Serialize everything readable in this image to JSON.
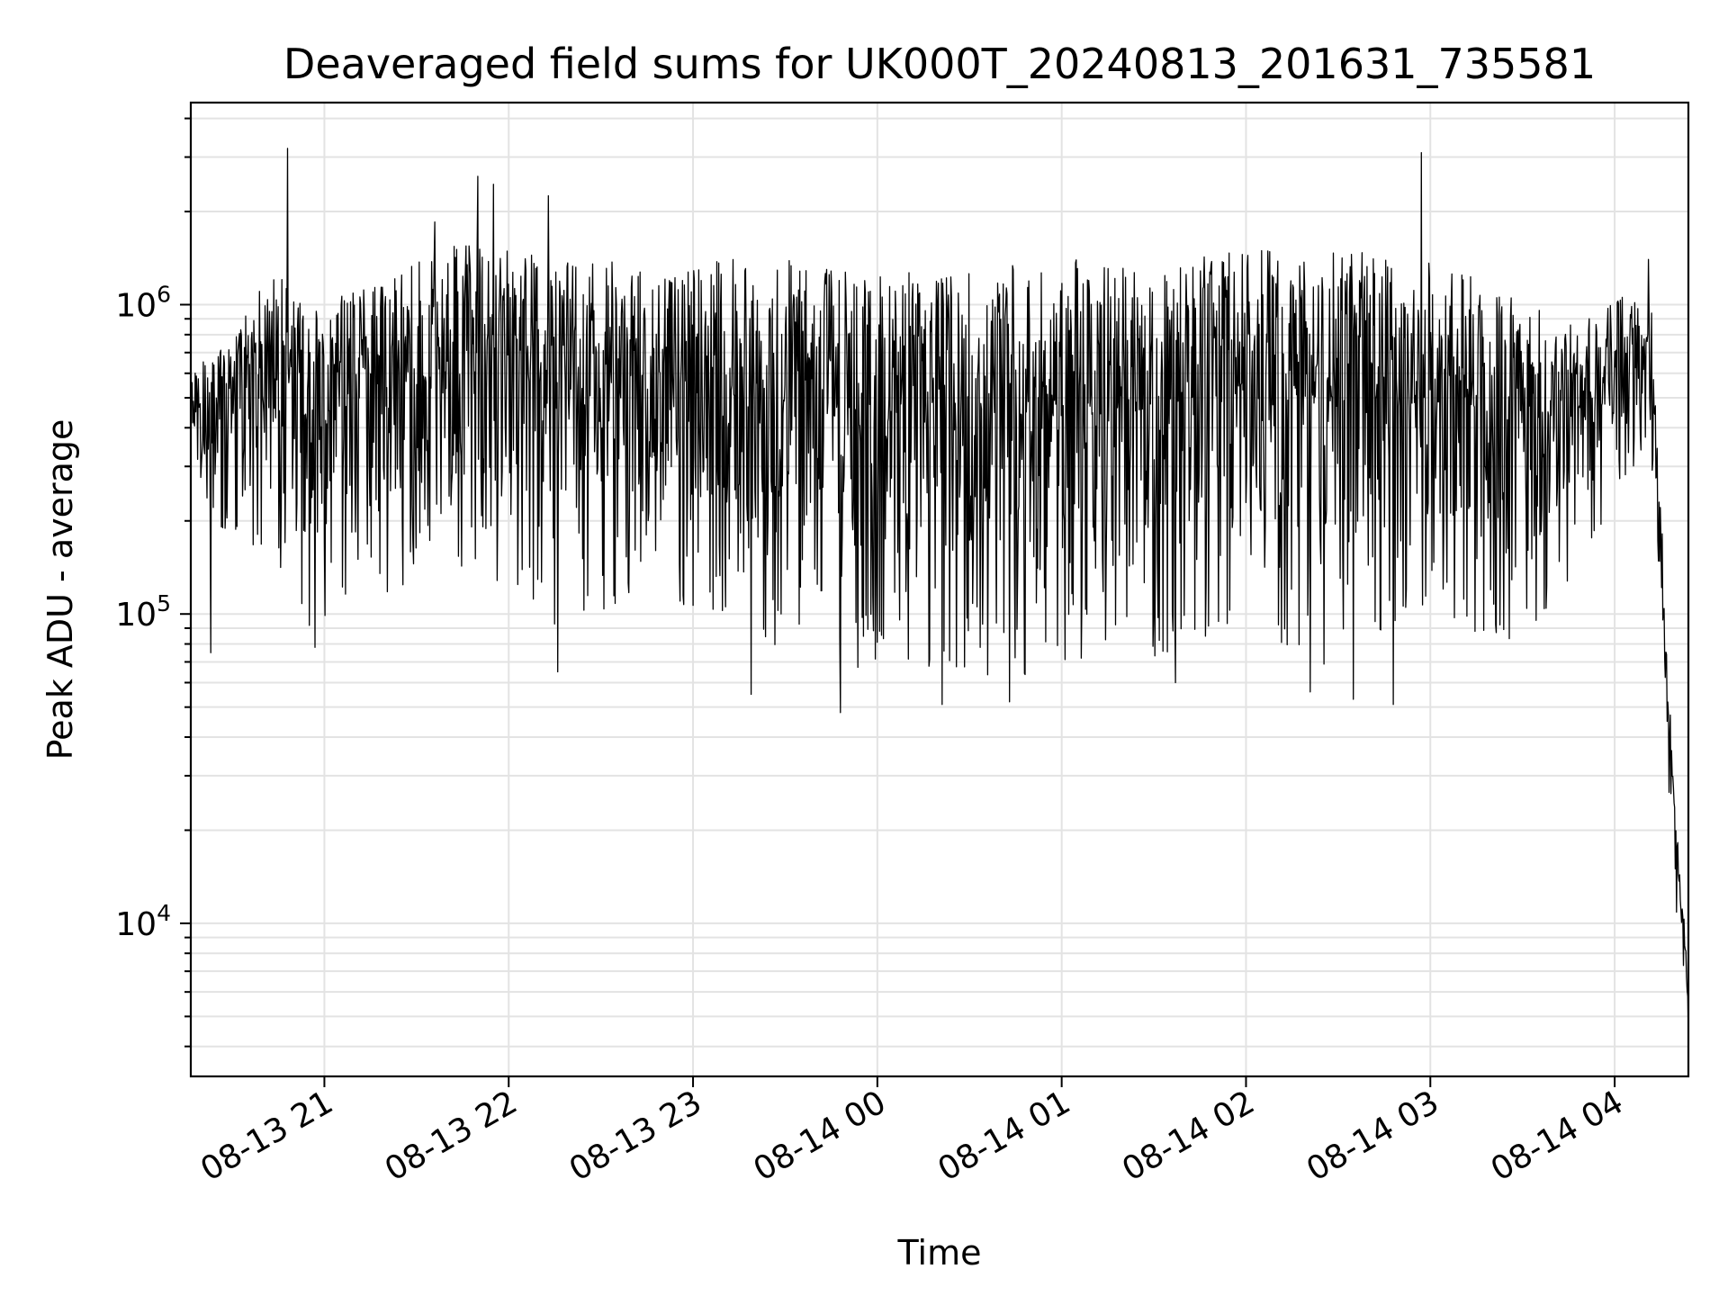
{
  "chart_data": {
    "type": "line",
    "title": "Deaveraged field sums for UK000T_20240813_201631_735581",
    "xlabel": "Time",
    "ylabel": "Peak ADU - average",
    "yscale": "log",
    "grid": true,
    "grid_color": "#e3e3e3",
    "line_color": "#000000",
    "xlim": [
      "2024-08-13T20:16:31",
      "2024-08-14T04:24:00"
    ],
    "ylim": [
      3200,
      4500000
    ],
    "x_ticks": [
      {
        "value": "2024-08-13T21:00:00",
        "label": "08-13 21"
      },
      {
        "value": "2024-08-13T22:00:00",
        "label": "08-13 22"
      },
      {
        "value": "2024-08-13T23:00:00",
        "label": "08-13 23"
      },
      {
        "value": "2024-08-14T00:00:00",
        "label": "08-14 00"
      },
      {
        "value": "2024-08-14T01:00:00",
        "label": "08-14 01"
      },
      {
        "value": "2024-08-14T02:00:00",
        "label": "08-14 02"
      },
      {
        "value": "2024-08-14T03:00:00",
        "label": "08-14 03"
      },
      {
        "value": "2024-08-14T04:00:00",
        "label": "08-14 04"
      }
    ],
    "y_ticks": [
      {
        "value": 10000,
        "base": "10",
        "exp": "4"
      },
      {
        "value": 100000,
        "base": "10",
        "exp": "5"
      },
      {
        "value": 1000000,
        "base": "10",
        "exp": "6"
      }
    ],
    "series": [
      {
        "envelope": [
          {
            "t": "2024-08-13T20:16:31",
            "low": 380000,
            "high": 580000
          },
          {
            "t": "2024-08-13T20:25:00",
            "low": 150000,
            "high": 750000
          },
          {
            "t": "2024-08-13T20:35:00",
            "low": 140000,
            "high": 1000000
          },
          {
            "t": "2024-08-13T20:45:00",
            "low": 130000,
            "high": 1300000
          },
          {
            "t": "2024-08-13T20:55:00",
            "low": 90000,
            "high": 1000000
          },
          {
            "t": "2024-08-13T21:15:00",
            "low": 110000,
            "high": 1200000
          },
          {
            "t": "2024-08-13T21:30:00",
            "low": 120000,
            "high": 1400000
          },
          {
            "t": "2024-08-13T21:45:00",
            "low": 120000,
            "high": 1600000
          },
          {
            "t": "2024-08-13T22:00:00",
            "low": 130000,
            "high": 1500000
          },
          {
            "t": "2024-08-13T22:15:00",
            "low": 90000,
            "high": 1400000
          },
          {
            "t": "2024-08-13T22:45:00",
            "low": 110000,
            "high": 1400000
          },
          {
            "t": "2024-08-13T23:00:00",
            "low": 100000,
            "high": 1500000
          },
          {
            "t": "2024-08-13T23:30:00",
            "low": 75000,
            "high": 1400000
          },
          {
            "t": "2024-08-14T00:00:00",
            "low": 65000,
            "high": 1300000
          },
          {
            "t": "2024-08-14T00:30:00",
            "low": 60000,
            "high": 1300000
          },
          {
            "t": "2024-08-14T01:00:00",
            "low": 65000,
            "high": 1400000
          },
          {
            "t": "2024-08-14T01:30:00",
            "low": 70000,
            "high": 1400000
          },
          {
            "t": "2024-08-14T02:00:00",
            "low": 90000,
            "high": 1500000
          },
          {
            "t": "2024-08-14T02:30:00",
            "low": 65000,
            "high": 1500000
          },
          {
            "t": "2024-08-14T03:00:00",
            "low": 90000,
            "high": 1400000
          },
          {
            "t": "2024-08-14T03:30:00",
            "low": 80000,
            "high": 1100000
          },
          {
            "t": "2024-08-14T03:50:00",
            "low": 150000,
            "high": 900000
          },
          {
            "t": "2024-08-14T04:05:00",
            "low": 300000,
            "high": 1100000
          },
          {
            "t": "2024-08-14T04:12:00",
            "low": 300000,
            "high": 1000000
          },
          {
            "t": "2024-08-14T04:16:00",
            "low": 60000,
            "high": 150000
          },
          {
            "t": "2024-08-14T04:19:00",
            "low": 14000,
            "high": 30000
          },
          {
            "t": "2024-08-14T04:22:00",
            "low": 7000,
            "high": 13000
          },
          {
            "t": "2024-08-14T04:24:00",
            "low": 4000,
            "high": 6000
          }
        ],
        "spikes": [
          {
            "t": "2024-08-13T20:48:00",
            "y": 3200000
          },
          {
            "t": "2024-08-13T21:36:00",
            "y": 1850000
          },
          {
            "t": "2024-08-13T21:50:00",
            "y": 2600000
          },
          {
            "t": "2024-08-13T21:55:00",
            "y": 2450000
          },
          {
            "t": "2024-08-13T22:13:00",
            "y": 2250000
          },
          {
            "t": "2024-08-14T02:57:00",
            "y": 3100000
          },
          {
            "t": "2024-08-14T04:11:00",
            "y": 1400000
          },
          {
            "t": "2024-08-13T20:23:00",
            "y": 75000
          },
          {
            "t": "2024-08-13T20:57:00",
            "y": 78000
          },
          {
            "t": "2024-08-13T22:16:00",
            "y": 65000
          },
          {
            "t": "2024-08-13T23:19:00",
            "y": 55000
          },
          {
            "t": "2024-08-13T23:48:00",
            "y": 48000
          },
          {
            "t": "2024-08-14T00:21:00",
            "y": 51000
          },
          {
            "t": "2024-08-14T00:43:00",
            "y": 52000
          },
          {
            "t": "2024-08-14T01:37:00",
            "y": 60000
          },
          {
            "t": "2024-08-14T02:21:00",
            "y": 56000
          },
          {
            "t": "2024-08-14T02:35:00",
            "y": 53000
          },
          {
            "t": "2024-08-14T02:48:00",
            "y": 51000
          }
        ]
      }
    ]
  }
}
